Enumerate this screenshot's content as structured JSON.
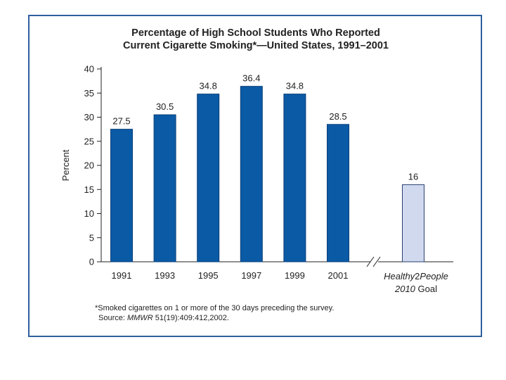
{
  "chart_data": {
    "type": "bar",
    "title": "Percentage of High School Students Who Reported",
    "subtitle": "Current Cigarette Smoking*—United States, 1991–2001",
    "ylabel": "Percent",
    "xlabel": "",
    "ylim": [
      0,
      40
    ],
    "yticks": [
      0,
      5,
      10,
      15,
      20,
      25,
      30,
      35,
      40
    ],
    "categories": [
      "1991",
      "1993",
      "1995",
      "1997",
      "1999",
      "2001"
    ],
    "values": [
      27.5,
      30.5,
      34.8,
      36.4,
      34.8,
      28.5
    ],
    "value_labels": [
      "27.5",
      "30.5",
      "34.8",
      "36.4",
      "34.8",
      "28.5"
    ],
    "goal": {
      "label_line1_italic": "Healthy",
      "label_line1_sep": "2",
      "label_line1_italic2": "People",
      "label_line2_italic": "2010",
      "label_line2": "Goal",
      "value": 16,
      "value_label": "16"
    },
    "footnote": "*Smoked cigarettes on 1 or more of the 30 days preceding the survey.",
    "source_prefix": "Source:",
    "source_journal": "MMWR",
    "source_rest": "51(19):409:412,2002.",
    "colors": {
      "bar": "#0a5aa6",
      "bar_edge": "#0a3f78",
      "goal_bar": "#d0d9ee",
      "goal_edge": "#2a3f6e",
      "frame": "#2e5f9e"
    }
  }
}
